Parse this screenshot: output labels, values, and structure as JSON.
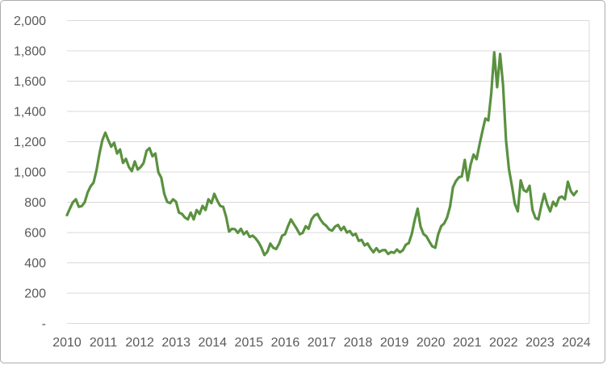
{
  "chart_data": {
    "type": "line",
    "title": "",
    "x_frequency": "monthly",
    "x_range_visible": "2010 to 2024",
    "x_tick_labels": [
      "2010",
      "2011",
      "2012",
      "2013",
      "2014",
      "2015",
      "2016",
      "2017",
      "2018",
      "2019",
      "2020",
      "2021",
      "2022",
      "2023",
      "2024"
    ],
    "y_tick_labels": [
      "2,000",
      "1,800",
      "1,600",
      "1,400",
      "1,200",
      "1,000",
      "800",
      "600",
      "400",
      "200",
      "-"
    ],
    "ylim": [
      0,
      2000
    ],
    "y_step": 200,
    "grid": "horizontal",
    "legend": "none",
    "series": [
      {
        "name": "monthly-price-series",
        "color": "#5a9140",
        "values": [
          715,
          760,
          800,
          820,
          770,
          775,
          800,
          865,
          905,
          930,
          1010,
          1120,
          1210,
          1260,
          1211,
          1167,
          1193,
          1122,
          1149,
          1060,
          1087,
          1033,
          1006,
          1070,
          1016,
          1033,
          1060,
          1140,
          1158,
          1104,
          1122,
          998,
          962,
          856,
          803,
          794,
          820,
          803,
          732,
          723,
          700,
          687,
          732,
          687,
          749,
          723,
          776,
          749,
          820,
          794,
          856,
          811,
          776,
          770,
          705,
          607,
          625,
          622,
          598,
          625,
          589,
          607,
          571,
          580,
          562,
          536,
          500,
          452,
          473,
          527,
          500,
          491,
          527,
          580,
          589,
          642,
          687,
          655,
          625,
          589,
          598,
          642,
          625,
          687,
          713,
          723,
          687,
          660,
          645,
          620,
          613,
          640,
          650,
          616,
          638,
          600,
          610,
          582,
          592,
          545,
          552,
          515,
          528,
          495,
          470,
          497,
          472,
          483,
          485,
          458,
          472,
          466,
          488,
          470,
          483,
          520,
          530,
          590,
          680,
          758,
          640,
          590,
          575,
          540,
          509,
          500,
          589,
          642,
          660,
          700,
          770,
          900,
          940,
          965,
          970,
          1080,
          945,
          1050,
          1115,
          1085,
          1180,
          1270,
          1353,
          1340,
          1520,
          1790,
          1560,
          1780,
          1575,
          1210,
          1020,
          909,
          790,
          740,
          945,
          880,
          870,
          909,
          749,
          696,
          687,
          780,
          856,
          785,
          740,
          803,
          776,
          830,
          838,
          820,
          936,
          873,
          847,
          873
        ]
      }
    ]
  },
  "style": {
    "background": "#ffffff",
    "frame_border_color": "#acacac",
    "gridline_color": "#d9d9d9",
    "axis_text_color": "#595959",
    "line_color": "#5a9140"
  }
}
